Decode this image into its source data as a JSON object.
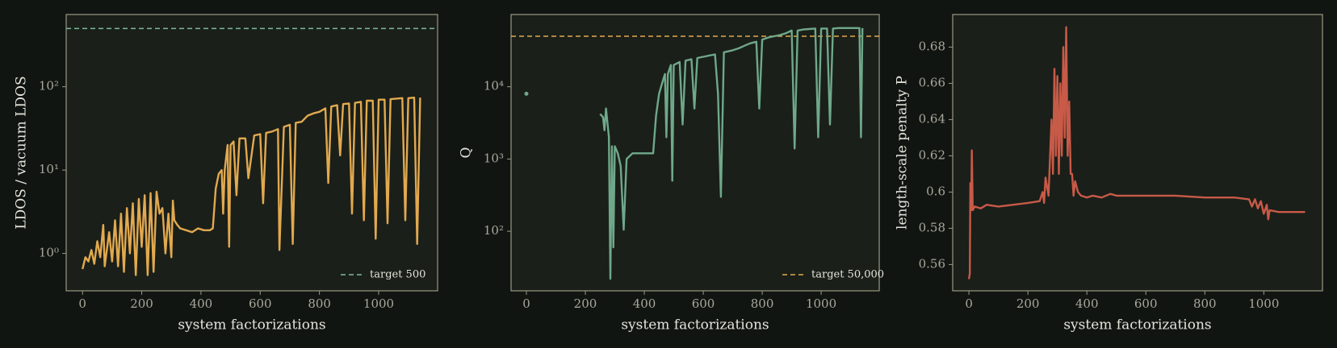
{
  "chart_data": [
    {
      "type": "line",
      "color": "#e2a94f",
      "xlabel": "system factorizations",
      "ylabel": "LDOS / vacuum LDOS",
      "ylog": true,
      "xlim": [
        -55,
        1199
      ],
      "ylim": [
        0.356,
        736
      ],
      "xticks": [
        0,
        200,
        400,
        600,
        800,
        1000
      ],
      "yticks": [
        {
          "value": 1,
          "label": "10⁰"
        },
        {
          "value": 10,
          "label": "10¹"
        },
        {
          "value": 100,
          "label": "10²"
        }
      ],
      "target": {
        "value": 500,
        "label": "target 500",
        "color": "#7fb89a"
      },
      "legend": "lower right",
      "x": [
        0,
        10,
        20,
        30,
        40,
        50,
        60,
        70,
        75,
        90,
        100,
        110,
        120,
        130,
        140,
        150,
        160,
        170,
        180,
        190,
        200,
        210,
        220,
        230,
        240,
        250,
        260,
        270,
        280,
        290,
        300,
        305,
        310,
        320,
        330,
        350,
        370,
        390,
        410,
        430,
        440,
        450,
        460,
        470,
        475,
        480,
        490,
        495,
        500,
        510,
        520,
        530,
        550,
        560,
        580,
        600,
        610,
        620,
        640,
        660,
        665,
        680,
        700,
        710,
        720,
        740,
        760,
        780,
        800,
        820,
        830,
        840,
        860,
        870,
        880,
        900,
        910,
        920,
        940,
        950,
        960,
        980,
        990,
        1000,
        1020,
        1030,
        1040,
        1060,
        1080,
        1090,
        1100,
        1120,
        1130,
        1140
      ],
      "values": [
        0.65,
        0.9,
        0.8,
        1.1,
        0.75,
        1.4,
        0.9,
        2.2,
        0.7,
        1.8,
        0.8,
        2.5,
        0.7,
        3,
        0.6,
        3.5,
        1.0,
        4,
        0.55,
        4.5,
        1.2,
        5,
        0.55,
        5.3,
        0.6,
        5.5,
        3,
        3.5,
        1,
        3,
        0.9,
        4.3,
        2.5,
        2.2,
        2.0,
        1.9,
        1.8,
        2.0,
        1.9,
        1.9,
        2.0,
        6,
        9,
        10,
        3,
        10,
        20,
        1.2,
        20,
        22,
        5,
        24,
        24,
        8,
        26,
        27,
        4,
        28,
        29,
        31,
        1.1,
        33,
        35,
        1.3,
        37,
        38,
        45,
        48,
        50,
        55,
        7,
        58,
        60,
        15,
        62,
        63,
        3,
        64,
        66,
        2.5,
        68,
        68,
        1.5,
        70,
        70,
        2.3,
        71,
        72,
        73,
        2.5,
        73,
        74,
        1.3,
        74
      ]
    },
    {
      "type": "line",
      "color": "#6fa88a",
      "xlabel": "system factorizations",
      "ylabel": "Q",
      "ylog": true,
      "xlim": [
        -52,
        1197
      ],
      "ylim": [
        15,
        100000
      ],
      "xticks": [
        0,
        200,
        400,
        600,
        800,
        1000
      ],
      "yticks": [
        {
          "value": 100,
          "label": "10²"
        },
        {
          "value": 1000,
          "label": "10³"
        },
        {
          "value": 10000,
          "label": "10⁴"
        }
      ],
      "target": {
        "value": 50000,
        "label": "target 50,000",
        "color": "#e2a94f"
      },
      "legend": "lower right",
      "x": [
        0,
        null,
        250,
        260,
        265,
        270,
        280,
        285,
        290,
        295,
        300,
        310,
        320,
        330,
        340,
        360,
        380,
        400,
        430,
        440,
        450,
        460,
        470,
        475,
        480,
        490,
        495,
        500,
        520,
        530,
        540,
        560,
        570,
        580,
        600,
        620,
        640,
        650,
        660,
        670,
        700,
        720,
        740,
        760,
        780,
        790,
        800,
        820,
        840,
        860,
        880,
        900,
        910,
        920,
        940,
        960,
        980,
        990,
        1000,
        1020,
        1030,
        1040,
        1060,
        1080,
        1100,
        1130,
        1135,
        1140
      ],
      "values": [
        8000,
        null,
        4200,
        3800,
        2500,
        5000,
        2000,
        22,
        1500,
        60,
        1500,
        1200,
        800,
        105,
        1000,
        1200,
        1200,
        1200,
        1200,
        4000,
        8000,
        11000,
        15000,
        2000,
        15000,
        20000,
        500,
        20000,
        22000,
        3000,
        23000,
        24000,
        5000,
        25000,
        26000,
        27000,
        28000,
        8000,
        300,
        30000,
        32000,
        34000,
        37000,
        40000,
        42000,
        5000,
        45000,
        48000,
        50000,
        52000,
        55000,
        60000,
        1400,
        60000,
        62000,
        63000,
        64000,
        2000,
        64000,
        64000,
        3000,
        64000,
        65000,
        65000,
        65000,
        65000,
        2000,
        65000
      ]
    },
    {
      "type": "line",
      "color": "#c85a48",
      "xlabel": "system factorizations",
      "ylabel": "length-scale penalty P",
      "ylog": false,
      "xlim": [
        -55,
        1199
      ],
      "ylim": [
        0.5455,
        0.698
      ],
      "xticks": [
        0,
        200,
        400,
        600,
        800,
        1000
      ],
      "yticks": [
        0.56,
        0.58,
        0.6,
        0.62,
        0.64,
        0.66,
        0.68
      ],
      "x": [
        0,
        3,
        5,
        8,
        10,
        13,
        20,
        40,
        60,
        100,
        150,
        200,
        240,
        250,
        255,
        260,
        270,
        280,
        285,
        290,
        295,
        300,
        305,
        310,
        315,
        320,
        325,
        330,
        335,
        340,
        345,
        350,
        355,
        360,
        370,
        380,
        400,
        420,
        450,
        480,
        500,
        600,
        700,
        800,
        900,
        950,
        960,
        970,
        980,
        990,
        1000,
        1010,
        1015,
        1020,
        1050,
        1100,
        1140
      ],
      "values": [
        0.552,
        0.555,
        0.605,
        0.59,
        0.623,
        0.59,
        0.592,
        0.591,
        0.593,
        0.592,
        0.593,
        0.594,
        0.595,
        0.6,
        0.594,
        0.608,
        0.598,
        0.64,
        0.61,
        0.668,
        0.62,
        0.664,
        0.61,
        0.66,
        0.62,
        0.68,
        0.63,
        0.691,
        0.62,
        0.65,
        0.61,
        0.61,
        0.598,
        0.606,
        0.6,
        0.598,
        0.597,
        0.598,
        0.597,
        0.599,
        0.598,
        0.598,
        0.598,
        0.597,
        0.597,
        0.596,
        0.592,
        0.596,
        0.591,
        0.595,
        0.588,
        0.593,
        0.585,
        0.59,
        0.589,
        0.589,
        0.589
      ]
    }
  ]
}
